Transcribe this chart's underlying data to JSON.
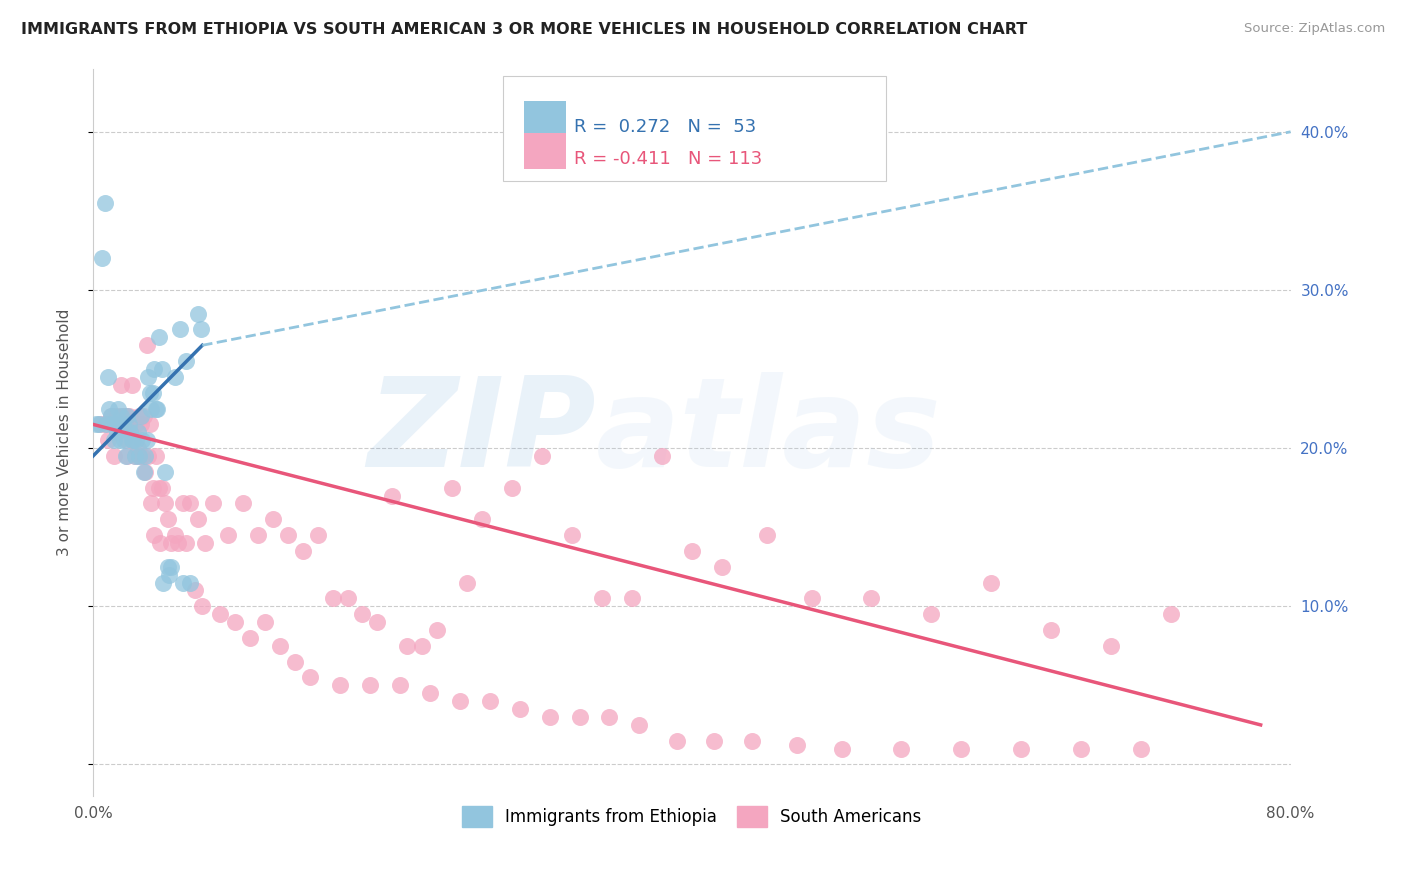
{
  "title": "IMMIGRANTS FROM ETHIOPIA VS SOUTH AMERICAN 3 OR MORE VEHICLES IN HOUSEHOLD CORRELATION CHART",
  "source": "Source: ZipAtlas.com",
  "ylabel_left": "3 or more Vehicles in Household",
  "xlim": [
    0.0,
    0.8
  ],
  "ylim": [
    -0.02,
    0.44
  ],
  "xticks": [
    0.0,
    0.1,
    0.2,
    0.3,
    0.4,
    0.5,
    0.6,
    0.7,
    0.8
  ],
  "xticklabels": [
    "0.0%",
    "",
    "",
    "",
    "",
    "",
    "",
    "",
    "80.0%"
  ],
  "ytick_positions": [
    0.0,
    0.1,
    0.2,
    0.3,
    0.4
  ],
  "ytick_labels_right": [
    "",
    "10.0%",
    "20.0%",
    "30.0%",
    "40.0%"
  ],
  "blue_color": "#92c5de",
  "pink_color": "#f4a6c0",
  "blue_line_color": "#3572b0",
  "pink_line_color": "#e8567a",
  "dashed_line_color": "#92c5de",
  "ethiopia_x": [
    0.002,
    0.008,
    0.01,
    0.012,
    0.013,
    0.015,
    0.016,
    0.017,
    0.018,
    0.019,
    0.02,
    0.021,
    0.022,
    0.023,
    0.024,
    0.025,
    0.026,
    0.027,
    0.028,
    0.029,
    0.03,
    0.031,
    0.032,
    0.033,
    0.034,
    0.035,
    0.036,
    0.038,
    0.04,
    0.042,
    0.044,
    0.046,
    0.048,
    0.05,
    0.052,
    0.055,
    0.058,
    0.062,
    0.065,
    0.07,
    0.004,
    0.006,
    0.009,
    0.011,
    0.014,
    0.037,
    0.039,
    0.041,
    0.043,
    0.047,
    0.051,
    0.06,
    0.072
  ],
  "ethiopia_y": [
    0.215,
    0.355,
    0.245,
    0.22,
    0.215,
    0.215,
    0.21,
    0.225,
    0.205,
    0.22,
    0.215,
    0.205,
    0.195,
    0.22,
    0.215,
    0.21,
    0.205,
    0.205,
    0.195,
    0.205,
    0.21,
    0.195,
    0.22,
    0.205,
    0.185,
    0.195,
    0.205,
    0.235,
    0.235,
    0.225,
    0.27,
    0.25,
    0.185,
    0.125,
    0.125,
    0.245,
    0.275,
    0.255,
    0.115,
    0.285,
    0.215,
    0.32,
    0.215,
    0.225,
    0.205,
    0.245,
    0.225,
    0.25,
    0.225,
    0.115,
    0.12,
    0.115,
    0.275
  ],
  "southam_x": [
    0.005,
    0.008,
    0.01,
    0.012,
    0.014,
    0.016,
    0.018,
    0.019,
    0.02,
    0.021,
    0.022,
    0.023,
    0.024,
    0.025,
    0.026,
    0.027,
    0.028,
    0.029,
    0.03,
    0.031,
    0.032,
    0.033,
    0.034,
    0.035,
    0.036,
    0.037,
    0.038,
    0.039,
    0.04,
    0.042,
    0.044,
    0.046,
    0.048,
    0.05,
    0.055,
    0.06,
    0.065,
    0.07,
    0.075,
    0.08,
    0.09,
    0.1,
    0.11,
    0.12,
    0.13,
    0.14,
    0.15,
    0.16,
    0.17,
    0.18,
    0.19,
    0.2,
    0.21,
    0.22,
    0.23,
    0.24,
    0.25,
    0.26,
    0.28,
    0.3,
    0.32,
    0.34,
    0.36,
    0.38,
    0.4,
    0.42,
    0.45,
    0.48,
    0.52,
    0.56,
    0.6,
    0.64,
    0.68,
    0.72,
    0.015,
    0.017,
    0.023,
    0.031,
    0.041,
    0.045,
    0.052,
    0.057,
    0.062,
    0.068,
    0.073,
    0.085,
    0.095,
    0.105,
    0.115,
    0.125,
    0.135,
    0.145,
    0.165,
    0.185,
    0.205,
    0.225,
    0.245,
    0.265,
    0.285,
    0.305,
    0.325,
    0.345,
    0.365,
    0.39,
    0.415,
    0.44,
    0.47,
    0.5,
    0.54,
    0.58,
    0.62,
    0.66,
    0.7
  ],
  "southam_y": [
    0.215,
    0.215,
    0.205,
    0.22,
    0.195,
    0.22,
    0.215,
    0.24,
    0.22,
    0.215,
    0.22,
    0.195,
    0.22,
    0.215,
    0.24,
    0.205,
    0.195,
    0.215,
    0.2,
    0.22,
    0.215,
    0.195,
    0.22,
    0.185,
    0.265,
    0.195,
    0.215,
    0.165,
    0.175,
    0.195,
    0.175,
    0.175,
    0.165,
    0.155,
    0.145,
    0.165,
    0.165,
    0.155,
    0.14,
    0.165,
    0.145,
    0.165,
    0.145,
    0.155,
    0.145,
    0.135,
    0.145,
    0.105,
    0.105,
    0.095,
    0.09,
    0.17,
    0.075,
    0.075,
    0.085,
    0.175,
    0.115,
    0.155,
    0.175,
    0.195,
    0.145,
    0.105,
    0.105,
    0.195,
    0.135,
    0.125,
    0.145,
    0.105,
    0.105,
    0.095,
    0.115,
    0.085,
    0.075,
    0.095,
    0.22,
    0.215,
    0.205,
    0.195,
    0.145,
    0.14,
    0.14,
    0.14,
    0.14,
    0.11,
    0.1,
    0.095,
    0.09,
    0.08,
    0.09,
    0.075,
    0.065,
    0.055,
    0.05,
    0.05,
    0.05,
    0.045,
    0.04,
    0.04,
    0.035,
    0.03,
    0.03,
    0.03,
    0.025,
    0.015,
    0.015,
    0.015,
    0.012,
    0.01,
    0.01,
    0.01,
    0.01,
    0.01,
    0.01
  ],
  "blue_line_x_start": 0.0,
  "blue_line_y_start": 0.195,
  "blue_line_x_solid_end": 0.073,
  "blue_line_y_solid_end": 0.265,
  "blue_line_x_dash_end": 0.8,
  "blue_line_y_dash_end": 0.4,
  "pink_line_x_start": 0.0,
  "pink_line_y_start": 0.215,
  "pink_line_x_end": 0.78,
  "pink_line_y_end": 0.025
}
